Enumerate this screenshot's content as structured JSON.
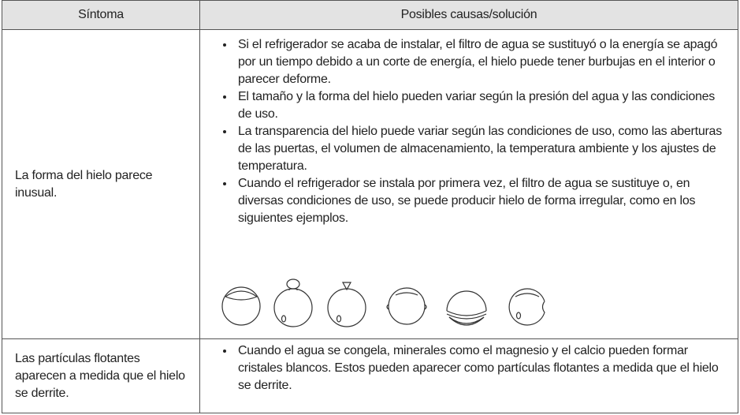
{
  "table": {
    "header": [
      "Síntoma",
      "Posibles causas/solución"
    ],
    "rows": [
      {
        "symptom": "La forma del hielo parece inusual.",
        "causes": [
          "Si el refrigerador se acaba de instalar, el filtro de agua se sustituyó o la energía se apagó por un tiempo debido a un corte de energía, el hielo puede tener burbujas en el interior o parecer deforme.",
          "El tamaño y la forma del hielo pueden variar según la presión del agua y las condiciones de uso.",
          "La transparencia del hielo puede variar según las condiciones de uso, como las aberturas de las puertas, el volumen de almacenamiento, la temperatura ambiente y los ajustes de temperatura.",
          "Cuando el refrigerador se instala por primera vez, el filtro de agua se sustituye o, en diversas condiciones de uso, se puede producir hielo de forma irregular, como en los siguientes ejemplos."
        ]
      },
      {
        "symptom": "Las partículas flotantes aparecen a medida que el hielo se derrite.",
        "causes": [
          "Cuando el agua se congela, minerales como el magnesio y el calcio pueden formar cristales blancos. Estos pueden aparecer como partículas flotantes a medida que el hielo se derrite."
        ]
      }
    ]
  }
}
